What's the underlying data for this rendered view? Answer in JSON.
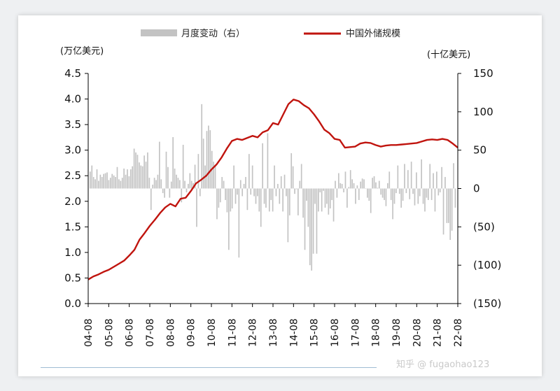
{
  "chart_data": {
    "type": "bar+line",
    "legend": {
      "position": "top",
      "bar_label": "月度变动（右）",
      "line_label": "中国外储规模"
    },
    "left_axis": {
      "unit_label": "(万亿美元)",
      "range": [
        0.0,
        4.5
      ],
      "ticks": [
        "0.0",
        "0.5",
        "1.0",
        "1.5",
        "2.0",
        "2.5",
        "3.0",
        "3.5",
        "4.0",
        "4.5"
      ]
    },
    "right_axis": {
      "unit_label": "(十亿美元)",
      "range": [
        -150,
        150
      ],
      "ticks": [
        "(150)",
        "(100)",
        "(50)",
        "0",
        "50",
        "100",
        "150"
      ]
    },
    "x_ticks": [
      "04-08",
      "05-08",
      "06-08",
      "07-08",
      "08-08",
      "09-08",
      "10-08",
      "11-08",
      "12-08",
      "13-08",
      "14-08",
      "15-08",
      "16-08",
      "17-08",
      "18-08",
      "19-08",
      "20-08",
      "21-08",
      "22-08"
    ],
    "series": [
      {
        "name": "中国外储规模",
        "axis": "left",
        "color": "#c0140e",
        "points": [
          [
            0,
            0.47
          ],
          [
            0.25,
            0.53
          ],
          [
            0.5,
            0.57
          ],
          [
            0.75,
            0.62
          ],
          [
            1,
            0.66
          ],
          [
            1.25,
            0.72
          ],
          [
            1.5,
            0.78
          ],
          [
            1.75,
            0.84
          ],
          [
            2,
            0.94
          ],
          [
            2.25,
            1.05
          ],
          [
            2.5,
            1.25
          ],
          [
            2.75,
            1.38
          ],
          [
            3,
            1.52
          ],
          [
            3.25,
            1.64
          ],
          [
            3.5,
            1.77
          ],
          [
            3.75,
            1.88
          ],
          [
            4,
            1.95
          ],
          [
            4.25,
            1.9
          ],
          [
            4.5,
            2.05
          ],
          [
            4.75,
            2.07
          ],
          [
            5,
            2.2
          ],
          [
            5.25,
            2.35
          ],
          [
            5.5,
            2.42
          ],
          [
            5.75,
            2.5
          ],
          [
            6,
            2.62
          ],
          [
            6.25,
            2.72
          ],
          [
            6.5,
            2.86
          ],
          [
            6.75,
            3.03
          ],
          [
            7,
            3.18
          ],
          [
            7.25,
            3.22
          ],
          [
            7.5,
            3.2
          ],
          [
            7.75,
            3.24
          ],
          [
            8,
            3.28
          ],
          [
            8.25,
            3.25
          ],
          [
            8.5,
            3.35
          ],
          [
            8.75,
            3.39
          ],
          [
            9,
            3.53
          ],
          [
            9.25,
            3.5
          ],
          [
            9.5,
            3.7
          ],
          [
            9.75,
            3.9
          ],
          [
            10,
            3.99
          ],
          [
            10.25,
            3.96
          ],
          [
            10.5,
            3.88
          ],
          [
            10.75,
            3.82
          ],
          [
            11,
            3.7
          ],
          [
            11.25,
            3.56
          ],
          [
            11.5,
            3.4
          ],
          [
            11.75,
            3.33
          ],
          [
            12,
            3.22
          ],
          [
            12.25,
            3.2
          ],
          [
            12.5,
            3.05
          ],
          [
            12.75,
            3.06
          ],
          [
            13,
            3.07
          ],
          [
            13.25,
            3.13
          ],
          [
            13.5,
            3.15
          ],
          [
            13.75,
            3.14
          ],
          [
            14,
            3.1
          ],
          [
            14.25,
            3.07
          ],
          [
            14.5,
            3.09
          ],
          [
            14.75,
            3.1
          ],
          [
            15,
            3.1
          ],
          [
            15.25,
            3.11
          ],
          [
            15.5,
            3.12
          ],
          [
            15.75,
            3.13
          ],
          [
            16,
            3.14
          ],
          [
            16.25,
            3.17
          ],
          [
            16.5,
            3.2
          ],
          [
            16.75,
            3.21
          ],
          [
            17,
            3.2
          ],
          [
            17.25,
            3.22
          ],
          [
            17.5,
            3.2
          ],
          [
            17.75,
            3.13
          ],
          [
            18,
            3.05
          ]
        ]
      },
      {
        "name": "月度变动（右）",
        "axis": "right",
        "color": "#c3c3c3",
        "values": [
          22,
          30,
          15,
          12,
          25,
          10,
          18,
          15,
          19,
          20,
          21,
          11,
          14,
          19,
          17,
          15,
          28,
          12,
          10,
          14,
          26,
          18,
          25,
          16,
          25,
          29,
          52,
          47,
          44,
          34,
          30,
          29,
          43,
          35,
          47,
          14,
          -28,
          5,
          14,
          11,
          18,
          61,
          12,
          -6,
          -12,
          48,
          28,
          -12,
          9,
          67,
          26,
          18,
          14,
          11,
          -18,
          57,
          10,
          -5,
          6,
          20,
          10,
          7,
          31,
          -50,
          45,
          -10,
          110,
          65,
          30,
          75,
          82,
          76,
          49,
          35,
          31,
          -40,
          -25,
          -18,
          15,
          10,
          -15,
          -31,
          -80,
          -30,
          -26,
          30,
          -20,
          -8,
          -90,
          11,
          -10,
          6,
          15,
          -28,
          45,
          -8,
          30,
          -10,
          -20,
          -10,
          -30,
          -50,
          59,
          -20,
          -25,
          72,
          -30,
          -15,
          -30,
          30,
          -10,
          6,
          -20,
          16,
          -30,
          18,
          -10,
          -70,
          -35,
          46,
          29,
          -7,
          -1,
          -35,
          10,
          32,
          -38,
          -80,
          -16,
          -50,
          -100,
          -107,
          -85,
          -20,
          -85,
          -30,
          -5,
          -30,
          -3,
          -25,
          -20,
          -34,
          -26,
          -15,
          -43,
          10,
          -12,
          20,
          7,
          6,
          -5,
          22,
          -25,
          2,
          24,
          12,
          7,
          -20,
          4,
          -15,
          9,
          13,
          12,
          0,
          -12,
          -16,
          -32,
          14,
          16,
          8,
          1,
          10,
          -8,
          -12,
          -15,
          -23,
          7,
          22,
          -15,
          -40,
          -20,
          -6,
          30,
          -7,
          -25,
          -16,
          32,
          -6,
          24,
          -14,
          35,
          -7,
          -22,
          21,
          -20,
          -10,
          38,
          -20,
          -30,
          -12,
          -15,
          32,
          -15,
          20,
          -30,
          22,
          -9,
          -5,
          28,
          -60,
          15,
          -45,
          -45,
          -67,
          -55,
          33,
          -25
        ]
      }
    ]
  },
  "watermark": "知乎 @ fugaohao123"
}
